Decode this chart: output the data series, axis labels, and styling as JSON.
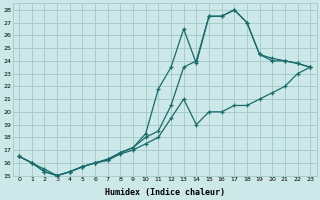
{
  "xlabel": "Humidex (Indice chaleur)",
  "bg_color": "#cce8e8",
  "grid_color": "#a8cccc",
  "line_color": "#1a6b6b",
  "xlim": [
    -0.5,
    23.5
  ],
  "ylim": [
    15,
    28.5
  ],
  "xticks": [
    0,
    1,
    2,
    3,
    4,
    5,
    6,
    7,
    8,
    9,
    10,
    11,
    12,
    13,
    14,
    15,
    16,
    17,
    18,
    19,
    20,
    21,
    22,
    23
  ],
  "yticks": [
    15,
    16,
    17,
    18,
    19,
    20,
    21,
    22,
    23,
    24,
    25,
    26,
    27,
    28
  ],
  "curve1_x": [
    0,
    1,
    2,
    3,
    4,
    5,
    6,
    7,
    8,
    9,
    10,
    11,
    12,
    13,
    14,
    15,
    16,
    17,
    18,
    19,
    20,
    21,
    22,
    23
  ],
  "curve1_y": [
    16.5,
    16.0,
    15.5,
    15.0,
    15.3,
    15.7,
    16.0,
    16.3,
    16.8,
    17.2,
    18.0,
    18.5,
    20.5,
    23.5,
    24.0,
    27.5,
    27.5,
    28.0,
    27.0,
    24.5,
    24.0,
    24.0,
    23.8,
    23.5
  ],
  "curve2_x": [
    0,
    1,
    2,
    3,
    4,
    5,
    6,
    7,
    8,
    9,
    10,
    11,
    12,
    13,
    14,
    15,
    16,
    17,
    18,
    19,
    20,
    21,
    22,
    23
  ],
  "curve2_y": [
    16.5,
    16.0,
    15.3,
    15.0,
    15.3,
    15.7,
    16.0,
    16.2,
    16.7,
    17.0,
    17.5,
    18.0,
    19.5,
    21.0,
    19.0,
    20.0,
    20.0,
    20.5,
    20.5,
    21.0,
    21.5,
    22.0,
    23.0,
    23.5
  ],
  "curve3_x": [
    0,
    1,
    2,
    3,
    4,
    5,
    6,
    7,
    8,
    9,
    10,
    11,
    12,
    13,
    14,
    15,
    16,
    17,
    18,
    19,
    20,
    21,
    22,
    23
  ],
  "curve3_y": [
    16.5,
    16.0,
    15.3,
    15.0,
    15.3,
    15.7,
    16.0,
    16.2,
    16.8,
    17.2,
    18.3,
    21.8,
    23.5,
    26.5,
    23.8,
    27.5,
    27.5,
    28.0,
    27.0,
    24.5,
    24.2,
    24.0,
    23.8,
    23.5
  ]
}
